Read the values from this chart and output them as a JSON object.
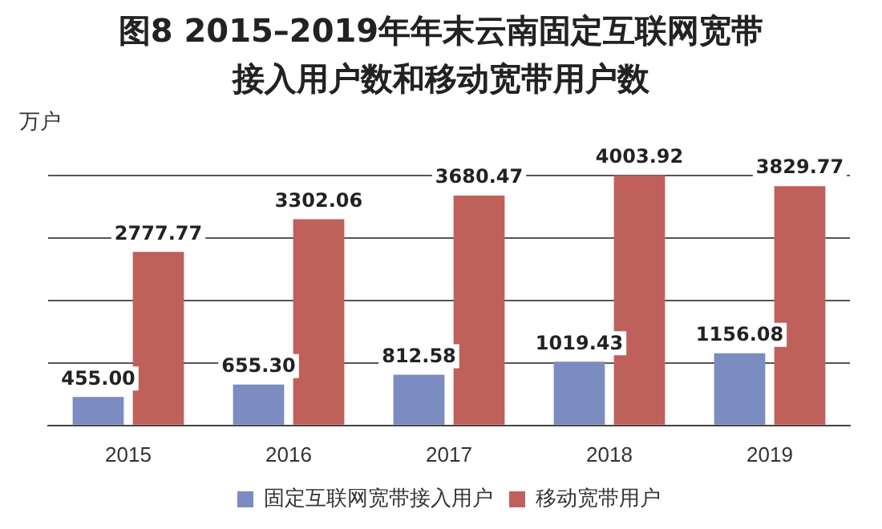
{
  "chart_data": {
    "type": "bar",
    "title": "图8 2015–2019年年末云南固定互联网宽带接入用户数和移动宽带用户数",
    "ylabel": "万户",
    "categories": [
      "2015",
      "2016",
      "2017",
      "2018",
      "2019"
    ],
    "series": [
      {
        "name": "固定互联网宽带接入用户",
        "color": "#7b8cc0",
        "values": [
          455.0,
          655.3,
          812.58,
          1019.43,
          1156.08
        ],
        "value_labels": [
          "455.00",
          "655.30",
          "812.58",
          "1019.43",
          "1156.08"
        ]
      },
      {
        "name": "移动宽带用户",
        "color": "#c0605a",
        "values": [
          2777.77,
          3302.06,
          3680.47,
          4003.92,
          3829.77
        ],
        "value_labels": [
          "2777.77",
          "3302.06",
          "3680.47",
          "4003.92",
          "3829.77"
        ]
      }
    ],
    "yticks": [
      {
        "value": 0,
        "label": null
      },
      {
        "value": 1000,
        "label": null
      },
      {
        "value": 2000,
        "label": null
      },
      {
        "value": 3000,
        "label": null
      },
      {
        "value": 4000,
        "label": null
      }
    ],
    "tick_labels": "x",
    "grid": "y",
    "legend": "bottom"
  }
}
